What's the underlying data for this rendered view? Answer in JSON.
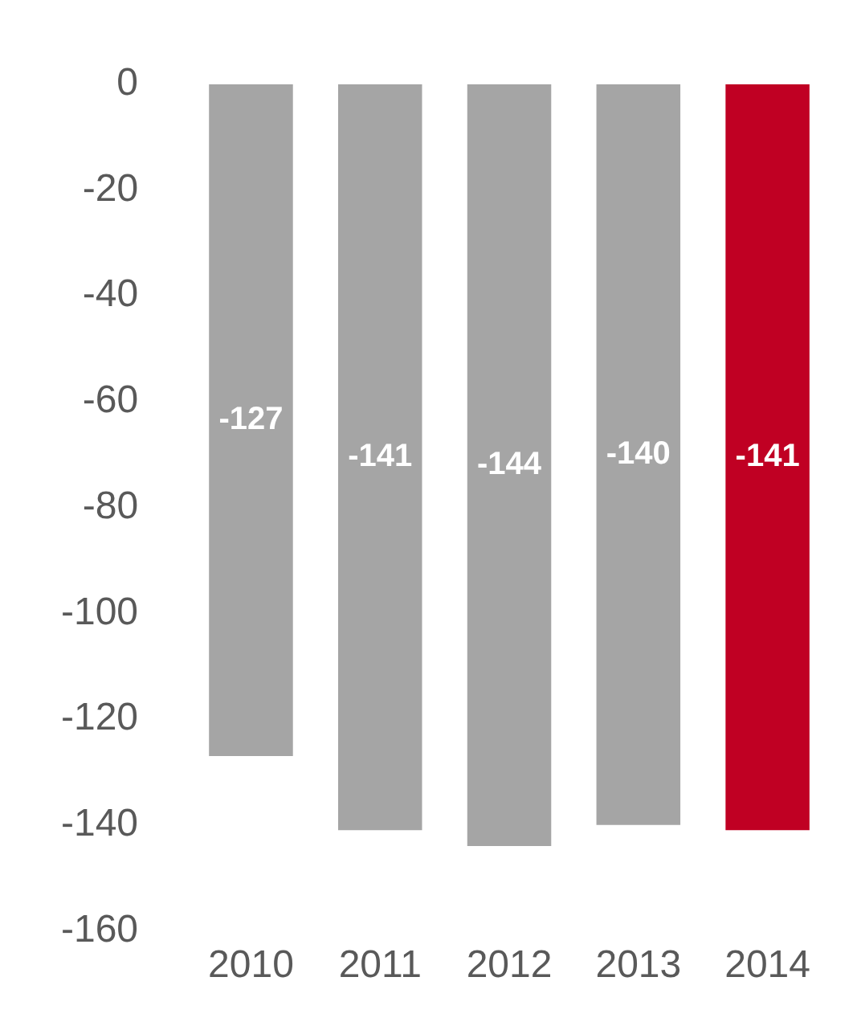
{
  "chart_data": {
    "type": "bar",
    "categories": [
      "2010",
      "2011",
      "2012",
      "2013",
      "2014"
    ],
    "values": [
      -127,
      -141,
      -144,
      -140,
      -141
    ],
    "colors": [
      "#a5a5a5",
      "#a5a5a5",
      "#a5a5a5",
      "#a5a5a5",
      "#c00023"
    ],
    "ylim": [
      -160,
      0
    ],
    "yticks": [
      0,
      -20,
      -40,
      -60,
      -80,
      -100,
      -120,
      -140,
      -160
    ],
    "grid": false,
    "legend": false,
    "data_labels": true
  }
}
